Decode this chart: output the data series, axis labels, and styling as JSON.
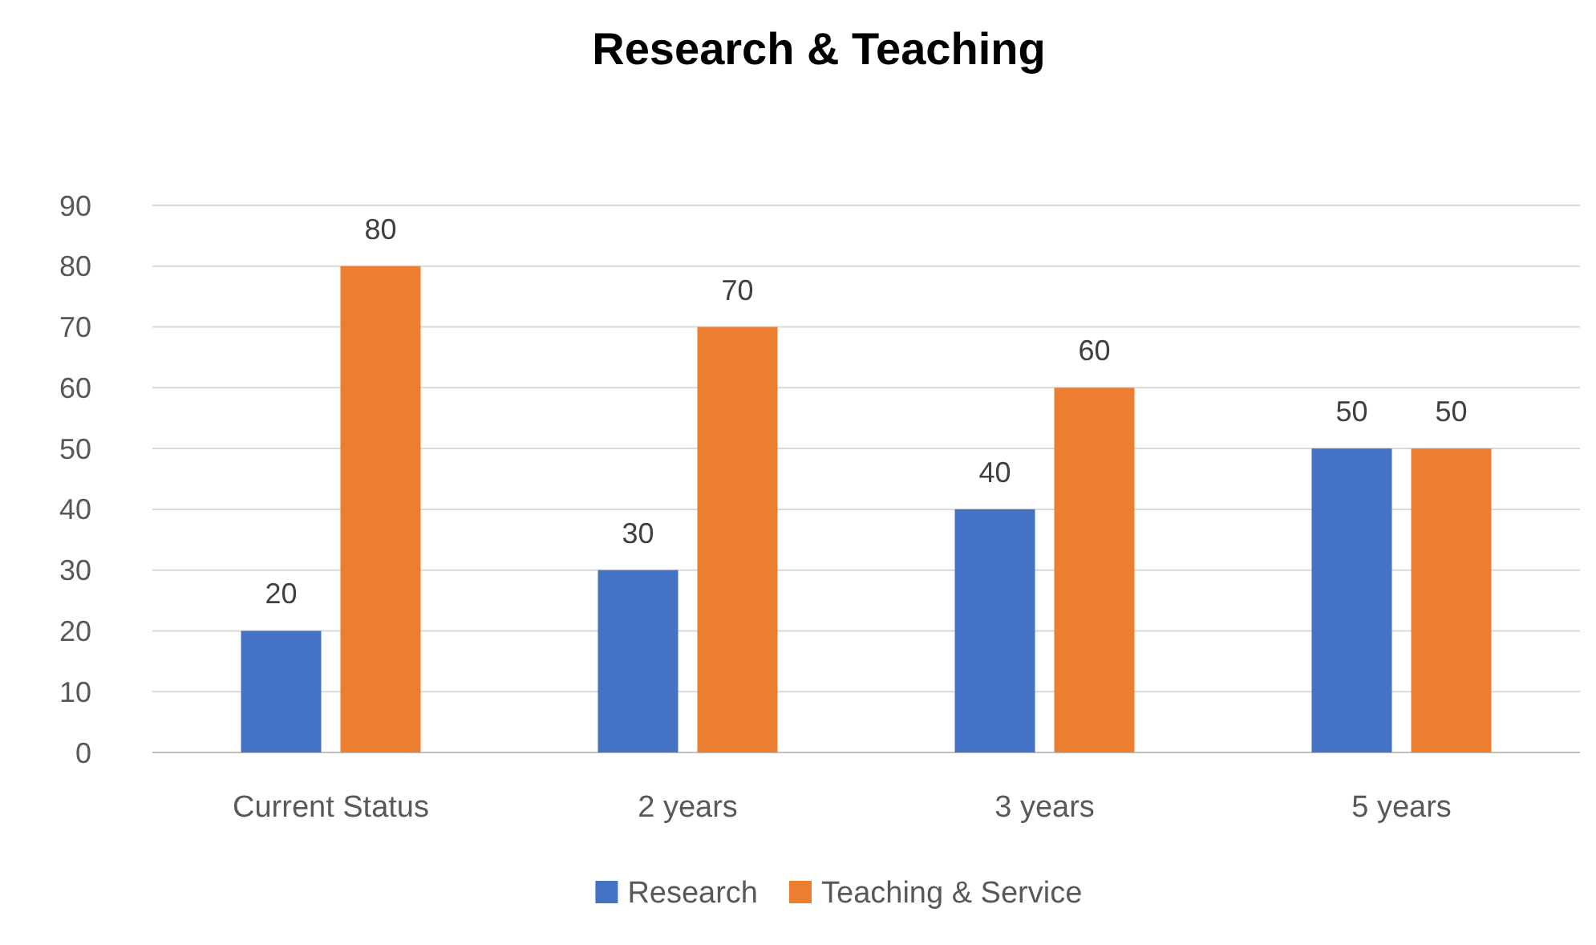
{
  "chart_data": {
    "type": "bar",
    "title": "Research & Teaching",
    "categories": [
      "Current Status",
      "2 years",
      "3 years",
      "5 years"
    ],
    "series": [
      {
        "name": "Research",
        "color": "#4472c4",
        "values": [
          20,
          30,
          40,
          50
        ]
      },
      {
        "name": "Teaching & Service",
        "color": "#ed7d31",
        "values": [
          80,
          70,
          60,
          50
        ]
      }
    ],
    "ylim": [
      0,
      90
    ],
    "yticks": [
      0,
      10,
      20,
      30,
      40,
      50,
      60,
      70,
      80,
      90
    ],
    "grid": "y",
    "data_labels": true,
    "legend": "bottom"
  }
}
